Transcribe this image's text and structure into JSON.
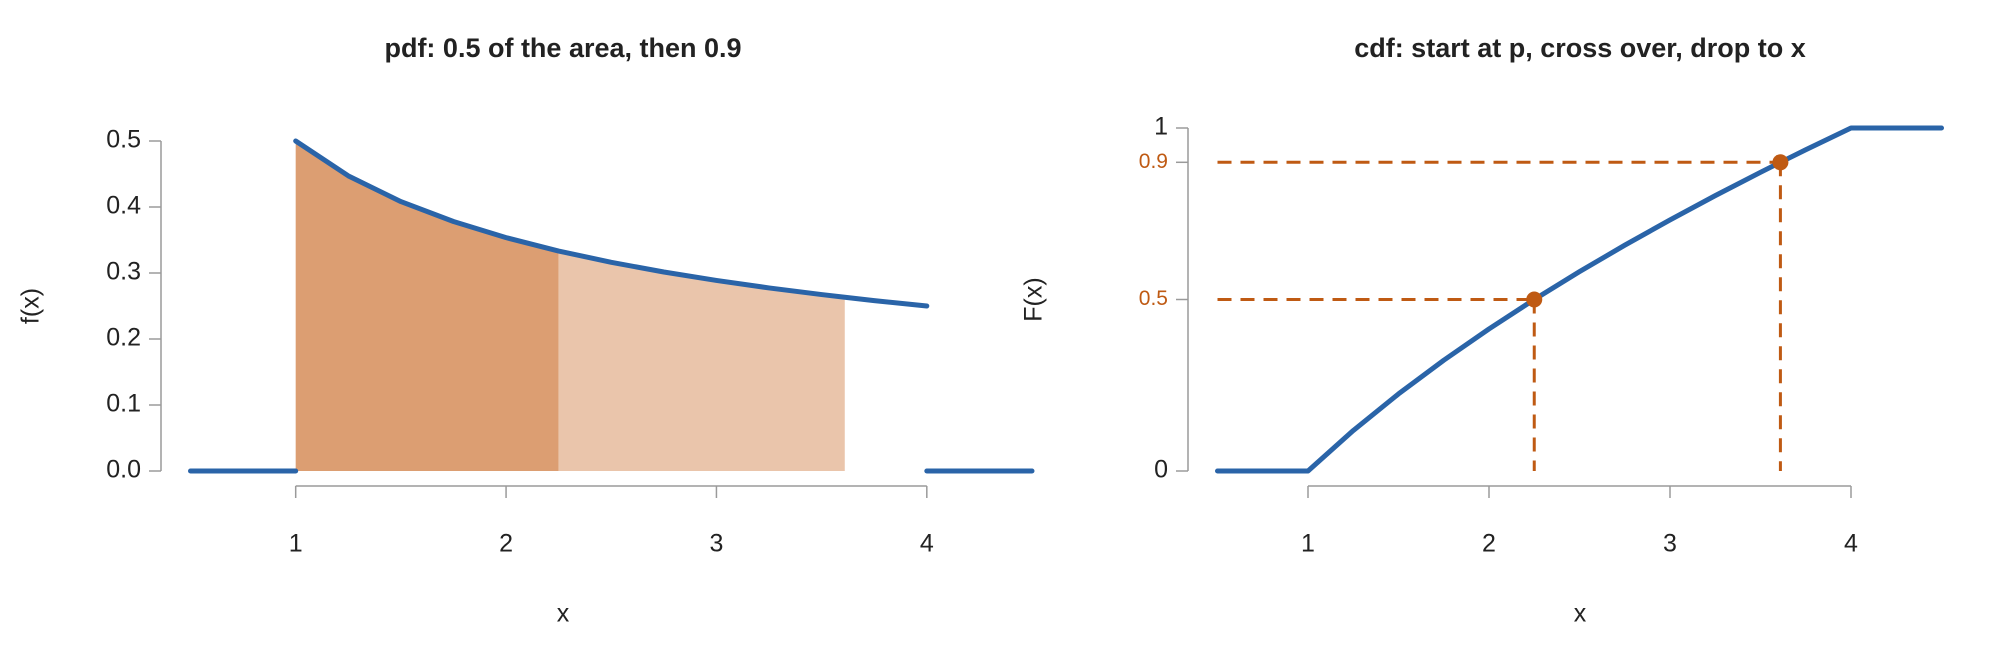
{
  "chart_data": [
    {
      "type": "area",
      "title": "pdf: 0.5 of the area, then 0.9",
      "xlabel": "x",
      "ylabel": "f(x)",
      "xlim": [
        0.5,
        4.5
      ],
      "ylim": [
        0,
        0.5
      ],
      "xticks": [
        1,
        2,
        3,
        4
      ],
      "yticks": [
        {
          "value": 0,
          "label": "0.0"
        },
        0.1,
        0.2,
        0.3,
        0.4,
        0.5
      ],
      "color": "#2a64a8",
      "lines": [
        {
          "x": [
            0.5,
            1
          ],
          "values": [
            0,
            0
          ]
        },
        {
          "x": [
            1,
            1.25,
            1.5,
            1.75,
            2,
            2.25,
            2.5,
            2.75,
            3,
            3.25,
            3.5,
            3.61,
            3.75,
            4
          ],
          "values": [
            0.5,
            0.4472,
            0.4082,
            0.378,
            0.3536,
            0.3333,
            0.3162,
            0.3015,
            0.2887,
            0.2774,
            0.2673,
            0.2632,
            0.2582,
            0.25
          ]
        },
        {
          "x": [
            4,
            4.5
          ],
          "values": [
            0,
            0
          ]
        }
      ],
      "areas": [
        {
          "from": 1,
          "to": 2.25,
          "color": "#dc9e72"
        },
        {
          "from": 2.25,
          "to": 3.61,
          "color": "#eac5ab"
        }
      ]
    },
    {
      "type": "line",
      "title": "cdf: start at p, cross over, drop to x",
      "xlabel": "x",
      "ylabel": "F(x)",
      "xlim": [
        0.5,
        4.5
      ],
      "ylim": [
        0,
        1
      ],
      "xticks": [
        1,
        2,
        3,
        4
      ],
      "yticks": [
        0,
        0.5,
        0.9,
        1
      ],
      "ytick_colors": [
        "#222222",
        "#bf5a13",
        "#bf5a13",
        "#222222"
      ],
      "color": "#2a64a8",
      "lines": [
        {
          "x": [
            0.5,
            1,
            1.25,
            1.5,
            1.75,
            2,
            2.25,
            2.5,
            2.75,
            3,
            3.25,
            3.5,
            3.61,
            3.75,
            4,
            4.5
          ],
          "values": [
            0,
            0,
            0.118,
            0.2247,
            0.3229,
            0.4142,
            0.5,
            0.5811,
            0.6583,
            0.7321,
            0.8028,
            0.8708,
            0.9,
            0.9365,
            1,
            1
          ]
        }
      ],
      "points": {
        "x": [
          2.25,
          3.61
        ],
        "values": [
          0.5,
          0.9
        ],
        "color": "#bf5a13"
      }
    }
  ]
}
